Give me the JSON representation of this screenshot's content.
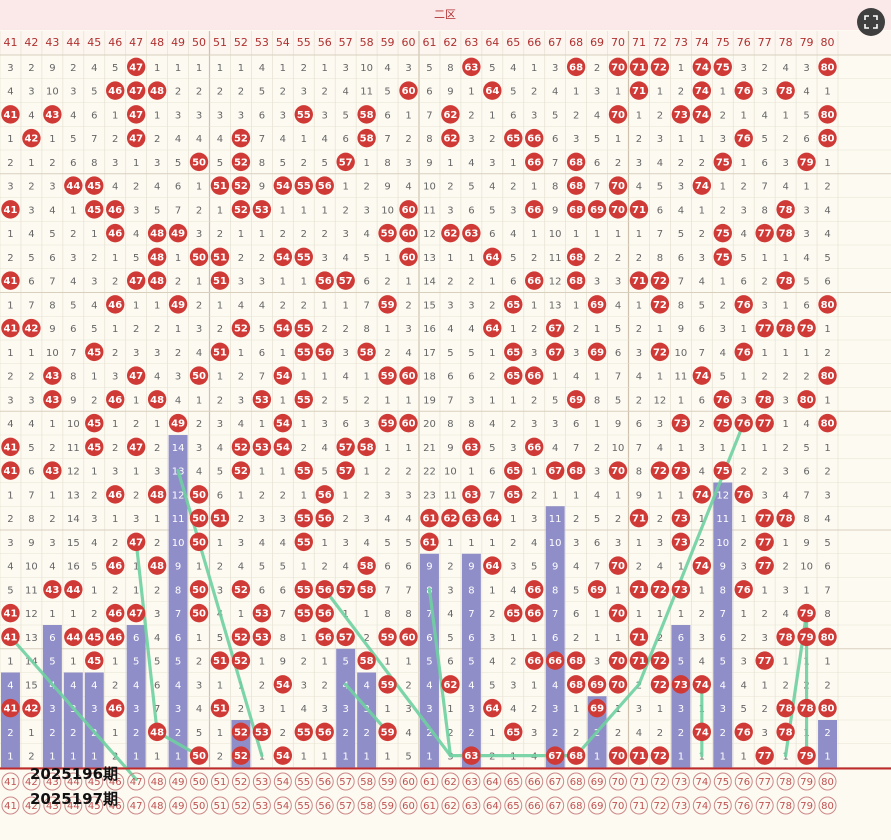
{
  "chart_data": {
    "type": "table",
    "title": "二区",
    "columns": [
      41,
      42,
      43,
      44,
      45,
      46,
      47,
      48,
      49,
      50,
      51,
      52,
      53,
      54,
      55,
      56,
      57,
      58,
      59,
      60,
      61,
      62,
      63,
      64,
      65,
      66,
      67,
      68,
      69,
      70,
      71,
      72,
      73,
      74,
      75,
      76,
      77,
      78,
      79,
      80
    ],
    "rows": [
      [
        3,
        2,
        9,
        2,
        4,
        5,
        "47",
        1,
        1,
        1,
        1,
        1,
        4,
        1,
        2,
        1,
        3,
        10,
        4,
        3,
        5,
        8,
        "63",
        5,
        4,
        1,
        3,
        "68",
        2,
        "70",
        "71",
        "72",
        1,
        "74",
        "75",
        3,
        2,
        4,
        3,
        "80"
      ],
      [
        4,
        3,
        10,
        3,
        5,
        "46",
        "47",
        "48",
        2,
        2,
        2,
        2,
        5,
        2,
        3,
        2,
        4,
        11,
        5,
        "60",
        6,
        9,
        1,
        "64",
        5,
        2,
        4,
        1,
        3,
        1,
        "71",
        1,
        2,
        "74",
        1,
        "76",
        3,
        "78",
        4,
        1
      ],
      [
        "41",
        4,
        "43",
        4,
        6,
        1,
        "47",
        1,
        3,
        3,
        3,
        3,
        6,
        3,
        "55",
        3,
        5,
        "58",
        6,
        1,
        7,
        "62",
        2,
        1,
        6,
        3,
        5,
        2,
        4,
        "70",
        1,
        2,
        "73",
        "74",
        2,
        1,
        4,
        1,
        5,
        "80"
      ],
      [
        1,
        "42",
        1,
        5,
        7,
        2,
        "47",
        2,
        4,
        4,
        4,
        "52",
        7,
        4,
        1,
        4,
        6,
        "58",
        7,
        2,
        8,
        "62",
        3,
        2,
        "65",
        "66",
        6,
        3,
        5,
        1,
        2,
        3,
        1,
        1,
        3,
        "76",
        5,
        2,
        6,
        "80"
      ],
      [
        2,
        1,
        2,
        6,
        8,
        3,
        1,
        3,
        5,
        "50",
        5,
        "52",
        8,
        5,
        2,
        5,
        "57",
        1,
        8,
        3,
        9,
        1,
        4,
        3,
        1,
        "66",
        7,
        "68",
        6,
        2,
        3,
        4,
        2,
        2,
        "75",
        1,
        6,
        3,
        "79",
        1
      ],
      [
        3,
        2,
        3,
        "44",
        "45",
        4,
        2,
        4,
        6,
        1,
        "51",
        "52",
        9,
        "54",
        "55",
        "56",
        1,
        2,
        9,
        4,
        10,
        2,
        5,
        4,
        2,
        1,
        8,
        "68",
        7,
        "70",
        4,
        5,
        3,
        "74",
        1,
        2,
        7,
        4,
        1,
        2
      ],
      [
        "41",
        3,
        4,
        1,
        "45",
        "46",
        3,
        5,
        7,
        2,
        1,
        "52",
        "53",
        1,
        1,
        1,
        2,
        3,
        10,
        "60",
        11,
        3,
        6,
        5,
        3,
        "66",
        9,
        "68",
        "69",
        "70",
        "71",
        6,
        4,
        1,
        2,
        3,
        8,
        "78",
        3,
        4
      ],
      [
        1,
        4,
        5,
        2,
        1,
        "46",
        4,
        "48",
        "49",
        3,
        2,
        1,
        1,
        2,
        2,
        2,
        3,
        4,
        "59",
        "60",
        12,
        "62",
        "63",
        6,
        4,
        1,
        10,
        1,
        1,
        1,
        1,
        7,
        5,
        2,
        "75",
        4,
        "77",
        "78",
        3,
        4
      ],
      [
        2,
        5,
        6,
        3,
        2,
        1,
        5,
        "48",
        1,
        "50",
        "51",
        2,
        2,
        "54",
        "55",
        3,
        4,
        5,
        1,
        "60",
        13,
        1,
        1,
        "64",
        5,
        2,
        11,
        "68",
        2,
        2,
        2,
        8,
        6,
        3,
        "75",
        5,
        1,
        1,
        4,
        5
      ],
      [
        "41",
        6,
        7,
        4,
        3,
        2,
        "47",
        "48",
        2,
        1,
        "51",
        3,
        3,
        1,
        1,
        "56",
        "57",
        6,
        2,
        1,
        14,
        2,
        2,
        1,
        6,
        "66",
        12,
        "68",
        3,
        3,
        "71",
        "72",
        7,
        4,
        1,
        6,
        2,
        "78",
        5,
        6
      ],
      [
        1,
        7,
        8,
        5,
        4,
        "46",
        1,
        1,
        "49",
        2,
        1,
        4,
        4,
        2,
        2,
        1,
        1,
        7,
        "59",
        2,
        15,
        3,
        3,
        2,
        "65",
        1,
        13,
        1,
        "69",
        4,
        1,
        "72",
        8,
        5,
        2,
        "76",
        3,
        1,
        6,
        "80"
      ],
      [
        "41",
        "42",
        9,
        6,
        5,
        1,
        2,
        2,
        1,
        3,
        2,
        "52",
        5,
        "54",
        "55",
        2,
        2,
        8,
        1,
        3,
        16,
        4,
        4,
        "64",
        1,
        2,
        "67",
        2,
        1,
        5,
        2,
        1,
        9,
        6,
        3,
        1,
        "77",
        "78",
        "79",
        1
      ],
      [
        1,
        1,
        10,
        7,
        "45",
        2,
        3,
        3,
        2,
        4,
        "51",
        1,
        6,
        1,
        "55",
        "56",
        3,
        "58",
        2,
        4,
        17,
        5,
        5,
        1,
        "65",
        3,
        "67",
        3,
        "69",
        6,
        3,
        "72",
        10,
        7,
        4,
        "76",
        1,
        1,
        1,
        2
      ],
      [
        2,
        2,
        "43",
        8,
        1,
        3,
        "47",
        4,
        3,
        "50",
        1,
        2,
        7,
        "54",
        1,
        1,
        4,
        1,
        "59",
        "60",
        18,
        6,
        6,
        2,
        "65",
        "66",
        1,
        4,
        1,
        7,
        4,
        1,
        11,
        "74",
        5,
        1,
        2,
        2,
        2,
        "80"
      ],
      [
        3,
        3,
        "43",
        9,
        2,
        "46",
        1,
        "48",
        4,
        1,
        2,
        3,
        "53",
        1,
        "55",
        2,
        5,
        2,
        1,
        1,
        19,
        7,
        3,
        1,
        1,
        2,
        5,
        "69",
        8,
        5,
        2,
        12,
        1,
        6,
        "76",
        3,
        "78",
        3,
        "80",
        1
      ],
      [
        4,
        4,
        1,
        10,
        "45",
        1,
        2,
        1,
        "49",
        2,
        3,
        4,
        1,
        "54",
        1,
        3,
        6,
        3,
        "59",
        "60",
        20,
        8,
        8,
        4,
        2,
        3,
        3,
        6,
        1,
        9,
        6,
        3,
        "73",
        2,
        "75",
        "76",
        "77",
        1,
        4,
        "80"
      ],
      [
        "41",
        5,
        2,
        11,
        "45",
        2,
        "47",
        2,
        1,
        3,
        4,
        "52",
        "53",
        "54",
        2,
        4,
        "57",
        "58",
        1,
        1,
        21,
        9,
        "63",
        5,
        3,
        "66",
        4,
        7,
        2,
        10,
        7,
        4,
        1,
        3,
        1,
        1,
        1,
        2,
        5,
        1
      ],
      [
        "41",
        6,
        "43",
        12,
        1,
        3,
        1,
        3,
        2,
        4,
        5,
        "52",
        1,
        1,
        "55",
        5,
        "57",
        1,
        2,
        2,
        22,
        10,
        1,
        6,
        "65",
        1,
        "67",
        "68",
        3,
        "70",
        8,
        "72",
        "73",
        4,
        "75",
        2,
        2,
        3,
        6,
        2
      ],
      [
        1,
        7,
        1,
        13,
        2,
        "46",
        2,
        "48",
        3,
        "50",
        6,
        1,
        2,
        2,
        1,
        "56",
        1,
        2,
        3,
        3,
        23,
        11,
        "63",
        7,
        "65",
        2,
        1,
        1,
        4,
        1,
        9,
        1,
        1,
        "74",
        1,
        "76",
        3,
        4,
        7,
        3
      ],
      [
        2,
        8,
        2,
        14,
        3,
        1,
        3,
        1,
        4,
        "50",
        "51",
        2,
        3,
        3,
        "55",
        "56",
        2,
        3,
        4,
        4,
        "61",
        "62",
        "63",
        "64",
        1,
        3,
        2,
        2,
        5,
        2,
        "71",
        2,
        "73",
        1,
        2,
        1,
        "77",
        "78",
        8,
        4
      ],
      [
        3,
        9,
        3,
        15,
        4,
        2,
        "47",
        2,
        5,
        "50",
        1,
        3,
        4,
        4,
        "55",
        1,
        3,
        4,
        5,
        5,
        "61",
        1,
        1,
        1,
        2,
        4,
        3,
        3,
        6,
        3,
        1,
        3,
        "73",
        2,
        3,
        2,
        "77",
        1,
        9,
        5
      ],
      [
        4,
        10,
        4,
        16,
        5,
        "46",
        1,
        "48",
        6,
        1,
        2,
        4,
        5,
        5,
        1,
        2,
        4,
        "58",
        6,
        6,
        1,
        2,
        2,
        "64",
        3,
        5,
        4,
        4,
        7,
        "70",
        2,
        4,
        1,
        "74",
        4,
        3,
        "77",
        2,
        10,
        6
      ],
      [
        5,
        11,
        "43",
        "44",
        1,
        2,
        1,
        2,
        7,
        "50",
        3,
        "52",
        6,
        6,
        "55",
        "56",
        "57",
        "58",
        7,
        7,
        2,
        3,
        3,
        1,
        4,
        "66",
        5,
        5,
        "69",
        1,
        "71",
        "72",
        "73",
        1,
        5,
        "76",
        1,
        3,
        1,
        7
      ],
      [
        "41",
        12,
        1,
        1,
        2,
        "46",
        "47",
        3,
        8,
        "50",
        4,
        1,
        "53",
        7,
        "55",
        "56",
        1,
        1,
        8,
        8,
        3,
        4,
        4,
        2,
        "65",
        "66",
        6,
        6,
        1,
        "70",
        1,
        1,
        1,
        2,
        6,
        1,
        2,
        4,
        "79",
        8
      ],
      [
        "41",
        13,
        2,
        "44",
        "45",
        "46",
        1,
        4,
        9,
        1,
        5,
        "52",
        "53",
        8,
        1,
        "56",
        "57",
        2,
        "59",
        "60",
        4,
        5,
        5,
        3,
        1,
        1,
        7,
        2,
        1,
        1,
        "71",
        2,
        2,
        3,
        7,
        2,
        3,
        "78",
        "79",
        "80"
      ],
      [
        1,
        14,
        3,
        1,
        "45",
        1,
        2,
        5,
        10,
        2,
        "51",
        "52",
        1,
        9,
        2,
        1,
        1,
        "58",
        1,
        1,
        5,
        6,
        6,
        4,
        2,
        "66",
        "66",
        "68",
        3,
        "70",
        "71",
        "72",
        3,
        4,
        8,
        3,
        "77",
        1,
        1,
        1
      ],
      [
        2,
        15,
        4,
        2,
        1,
        2,
        3,
        6,
        11,
        3,
        1,
        1,
        2,
        "54",
        3,
        2,
        2,
        1,
        "59",
        2,
        6,
        "62",
        7,
        5,
        3,
        1,
        1,
        "68",
        "69",
        "70",
        2,
        "72",
        "73",
        "74",
        9,
        4,
        1,
        2,
        2,
        2
      ],
      [
        "41",
        "42",
        5,
        3,
        2,
        "46",
        4,
        7,
        12,
        4,
        "51",
        2,
        3,
        1,
        4,
        3,
        3,
        2,
        1,
        3,
        7,
        1,
        8,
        "64",
        4,
        2,
        2,
        1,
        "69",
        1,
        3,
        1,
        4,
        1,
        10,
        5,
        2,
        "78",
        "78",
        "80"
      ],
      [
        1,
        1,
        6,
        4,
        3,
        1,
        5,
        "48",
        13,
        5,
        1,
        "52",
        "53",
        2,
        "55",
        "56",
        4,
        3,
        "59",
        4,
        8,
        2,
        9,
        1,
        "65",
        3,
        11,
        2,
        1,
        2,
        4,
        2,
        5,
        "74",
        11,
        "76",
        3,
        "78",
        1,
        1
      ],
      [
        2,
        2,
        7,
        5,
        4,
        2,
        6,
        1,
        14,
        "50",
        2,
        "52",
        1,
        "54",
        1,
        1,
        5,
        4,
        1,
        5,
        9,
        3,
        "63",
        2,
        1,
        4,
        "67",
        "68",
        2,
        "70",
        "71",
        "72",
        6,
        1,
        12,
        1,
        "77",
        1,
        "79",
        2
      ]
    ],
    "omission_bars": [
      {
        "column": 41,
        "values": [
          1,
          2,
          3,
          4
        ]
      },
      {
        "column": 43,
        "values": [
          1,
          2,
          3,
          4,
          5,
          6
        ]
      },
      {
        "column": 44,
        "values": [
          1,
          2,
          3,
          4
        ]
      },
      {
        "column": 45,
        "values": [
          1,
          2,
          3,
          4
        ]
      },
      {
        "column": 47,
        "values": [
          1,
          2,
          3,
          4,
          5,
          6
        ]
      },
      {
        "column": 49,
        "values": [
          1,
          2,
          3,
          4,
          5,
          6,
          7,
          8,
          9,
          10,
          11,
          12,
          13,
          14
        ]
      },
      {
        "column": 52,
        "values": [
          1,
          2
        ]
      },
      {
        "column": 57,
        "values": [
          1,
          2,
          3,
          4,
          5
        ]
      },
      {
        "column": 58,
        "values": [
          1,
          2,
          3,
          4
        ]
      },
      {
        "column": 61,
        "values": [
          1,
          2,
          3,
          4,
          5,
          6,
          7,
          8,
          9
        ]
      },
      {
        "column": 63,
        "values": [
          1,
          2,
          3,
          4,
          5,
          6,
          7,
          8,
          9
        ]
      },
      {
        "column": 67,
        "values": [
          1,
          2,
          3,
          4,
          5,
          6,
          7,
          8,
          9,
          10,
          11
        ]
      },
      {
        "column": 69,
        "values": [
          1,
          2,
          3
        ]
      },
      {
        "column": 73,
        "values": [
          1,
          2,
          3,
          4,
          5,
          6
        ]
      },
      {
        "column": 75,
        "values": [
          1,
          2,
          3,
          4,
          5,
          6,
          7,
          8,
          9,
          10,
          11,
          12
        ]
      },
      {
        "column": 80,
        "values": [
          1,
          2
        ]
      }
    ],
    "period_labels": [
      "2025196期",
      "2025197期"
    ],
    "trend_line_rows": [
      [
        41,
        24,
        47,
        30
      ],
      [
        47,
        20,
        48,
        28
      ],
      [
        48,
        28,
        50,
        29
      ],
      [
        49,
        17,
        53,
        29
      ],
      [
        56,
        22,
        62,
        29
      ],
      [
        57,
        26,
        59,
        28
      ],
      [
        61,
        22,
        62,
        29
      ],
      [
        62,
        29,
        68,
        29
      ],
      [
        68,
        29,
        71,
        26
      ],
      [
        71,
        26,
        76,
        15
      ],
      [
        74,
        26,
        74,
        29
      ],
      [
        78,
        29,
        79,
        23
      ],
      [
        79,
        23,
        79,
        29
      ]
    ],
    "colors": {
      "hit": "#d03a36",
      "bar": "#8f8ec8",
      "trend": "#6fd1a2",
      "redline": "#c02a2a",
      "region": "#fbe9ea",
      "grid": "#e6e1d2"
    },
    "grid": true,
    "legend": "none"
  }
}
